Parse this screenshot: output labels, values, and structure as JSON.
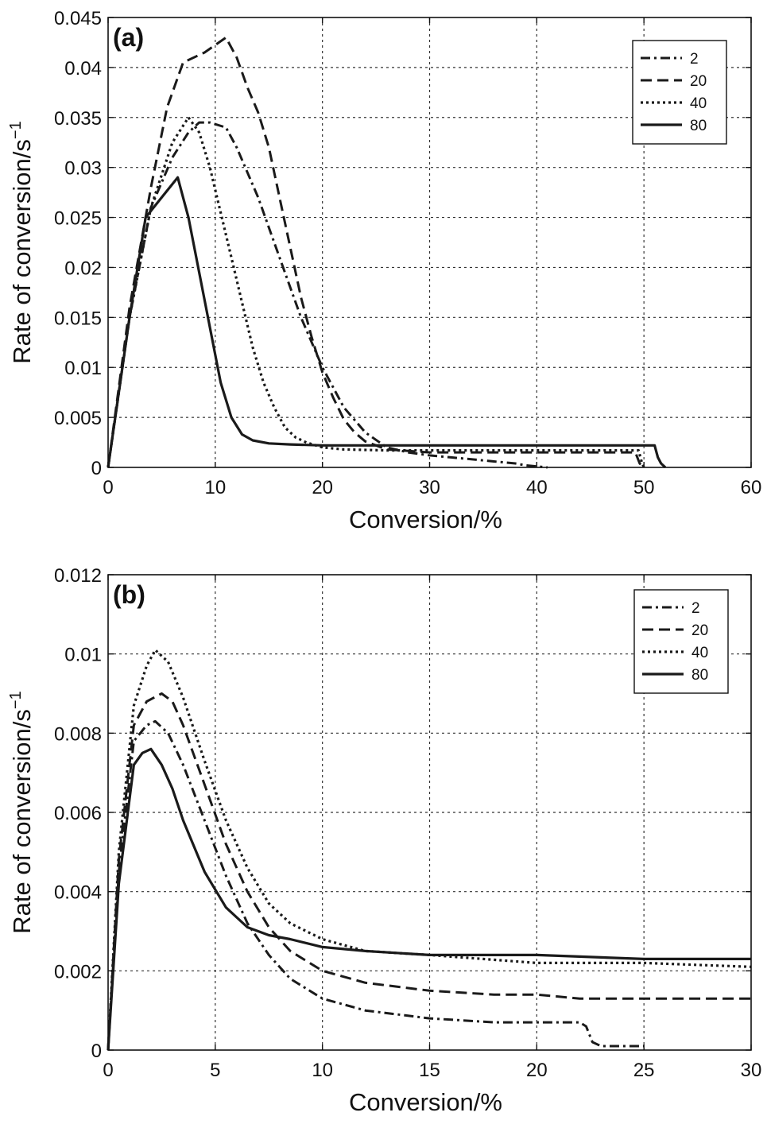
{
  "chart_data": [
    {
      "type": "line",
      "panel_label": "(a)",
      "xlabel": "Conversion/%",
      "ylabel": "Rate of conversion/s",
      "ylabel_sup": "−1",
      "xlim": [
        0,
        60
      ],
      "ylim": [
        0,
        0.045
      ],
      "xticks": [
        0,
        10,
        20,
        30,
        40,
        50,
        60
      ],
      "xtick_labels": [
        "0",
        "10",
        "20",
        "30",
        "40",
        "50",
        "60"
      ],
      "yticks": [
        0,
        0.005,
        0.01,
        0.015,
        0.02,
        0.025,
        0.03,
        0.035,
        0.04,
        0.045
      ],
      "ytick_labels": [
        "0",
        "0.005",
        "0.01",
        "0.015",
        "0.02",
        "0.025",
        "0.03",
        "0.035",
        "0.04",
        "0.045"
      ],
      "grid": true,
      "legend_position": "top-right",
      "series": [
        {
          "name": "2",
          "style": "dashdot",
          "x": [
            0,
            2,
            4,
            6,
            7.5,
            8.5,
            9.5,
            11,
            12,
            14,
            16,
            18,
            20,
            22,
            24,
            26,
            28,
            30,
            32,
            34,
            36,
            38,
            39,
            40,
            41
          ],
          "y": [
            0,
            0.015,
            0.026,
            0.031,
            0.0335,
            0.0345,
            0.0345,
            0.034,
            0.032,
            0.027,
            0.021,
            0.015,
            0.01,
            0.006,
            0.0035,
            0.002,
            0.0015,
            0.0012,
            0.001,
            0.0008,
            0.0006,
            0.0004,
            0.0002,
            0.0001,
            0
          ]
        },
        {
          "name": "20",
          "style": "dashed",
          "x": [
            0,
            2,
            4,
            5.5,
            7,
            9,
            11,
            12,
            13,
            14,
            15,
            16,
            17,
            18,
            19,
            20,
            21,
            22,
            23,
            24,
            26,
            30,
            40,
            48,
            49.2,
            49.6,
            50
          ],
          "y": [
            0,
            0.016,
            0.028,
            0.036,
            0.0405,
            0.0415,
            0.043,
            0.041,
            0.038,
            0.0355,
            0.032,
            0.027,
            0.022,
            0.017,
            0.013,
            0.0095,
            0.007,
            0.0048,
            0.0035,
            0.0026,
            0.0018,
            0.0015,
            0.0015,
            0.0015,
            0.0015,
            0.0004,
            0
          ]
        },
        {
          "name": "40",
          "style": "dotted",
          "x": [
            0,
            2,
            4,
            6,
            7.5,
            8.5,
            9.5,
            10.5,
            11.5,
            12.5,
            13.5,
            14.5,
            15.5,
            16.5,
            17.5,
            18.5,
            20,
            22,
            26,
            30,
            35,
            40,
            45,
            49.5,
            49.8,
            50
          ],
          "y": [
            0,
            0.015,
            0.026,
            0.0325,
            0.035,
            0.0335,
            0.03,
            0.0255,
            0.021,
            0.0165,
            0.012,
            0.0085,
            0.006,
            0.004,
            0.003,
            0.0025,
            0.002,
            0.0018,
            0.0017,
            0.0017,
            0.0017,
            0.0017,
            0.0017,
            0.0017,
            0.0005,
            0
          ]
        },
        {
          "name": "80",
          "style": "solid",
          "x": [
            0,
            2,
            3.5,
            5,
            6.5,
            7.5,
            8.5,
            9.5,
            10.5,
            11.5,
            12.5,
            13.5,
            15,
            17,
            20,
            25,
            30,
            35,
            40,
            45,
            50,
            51,
            51.3,
            51.6,
            52
          ],
          "y": [
            0,
            0.015,
            0.025,
            0.027,
            0.029,
            0.025,
            0.0195,
            0.014,
            0.0085,
            0.005,
            0.0033,
            0.0027,
            0.0024,
            0.0023,
            0.0022,
            0.0022,
            0.0022,
            0.0022,
            0.0022,
            0.0022,
            0.0022,
            0.0022,
            0.001,
            0.0004,
            0
          ]
        }
      ]
    },
    {
      "type": "line",
      "panel_label": "(b)",
      "xlabel": "Conversion/%",
      "ylabel": "Rate of conversion/s",
      "ylabel_sup": "−1",
      "xlim": [
        0,
        30
      ],
      "ylim": [
        0,
        0.012
      ],
      "xticks": [
        0,
        5,
        10,
        15,
        20,
        25,
        30
      ],
      "xtick_labels": [
        "0",
        "5",
        "10",
        "15",
        "20",
        "25",
        "30"
      ],
      "yticks": [
        0,
        0.002,
        0.004,
        0.006,
        0.008,
        0.01,
        0.012
      ],
      "ytick_labels": [
        "0",
        "0.002",
        "0.004",
        "0.006",
        "0.008",
        "0.01",
        "0.012"
      ],
      "grid": true,
      "legend_position": "top-right",
      "series": [
        {
          "name": "2",
          "style": "dashdot",
          "x": [
            0,
            0.5,
            1.2,
            1.8,
            2.2,
            2.8,
            3.5,
            4.5,
            5.5,
            6.5,
            7.5,
            8.5,
            10,
            12,
            15,
            18,
            20,
            22,
            22.3,
            22.6,
            23,
            24,
            25
          ],
          "y": [
            0,
            0.0045,
            0.0078,
            0.0082,
            0.0083,
            0.008,
            0.0072,
            0.0058,
            0.0044,
            0.0032,
            0.0024,
            0.0018,
            0.0013,
            0.001,
            0.0008,
            0.0007,
            0.0007,
            0.0007,
            0.0006,
            0.0002,
            0.0001,
            0.0001,
            0.0001
          ]
        },
        {
          "name": "20",
          "style": "dashed",
          "x": [
            0,
            0.5,
            1.2,
            1.8,
            2.5,
            3,
            3.5,
            4.5,
            5.5,
            6.5,
            7.5,
            8.5,
            10,
            12,
            15,
            18,
            20,
            22,
            25,
            30
          ],
          "y": [
            0,
            0.0048,
            0.0082,
            0.0088,
            0.009,
            0.0088,
            0.0082,
            0.0067,
            0.0052,
            0.004,
            0.0031,
            0.0025,
            0.002,
            0.0017,
            0.0015,
            0.0014,
            0.0014,
            0.0013,
            0.0013,
            0.0013
          ]
        },
        {
          "name": "40",
          "style": "dotted",
          "x": [
            0,
            0.5,
            1.2,
            1.8,
            2.2,
            2.8,
            3.5,
            4.5,
            5.5,
            6.5,
            7.5,
            8.5,
            10,
            12,
            15,
            20,
            25,
            30
          ],
          "y": [
            0,
            0.005,
            0.0087,
            0.0097,
            0.0101,
            0.0098,
            0.0089,
            0.0073,
            0.0058,
            0.0046,
            0.0037,
            0.0032,
            0.0028,
            0.0025,
            0.0024,
            0.0022,
            0.0022,
            0.0021
          ]
        },
        {
          "name": "80",
          "style": "solid",
          "x": [
            0,
            0.5,
            1.2,
            1.6,
            2,
            2.5,
            3,
            3.5,
            4.5,
            5.5,
            6.5,
            7.5,
            8.5,
            10,
            12,
            15,
            20,
            25,
            30
          ],
          "y": [
            0,
            0.0042,
            0.0072,
            0.0075,
            0.0076,
            0.0072,
            0.0066,
            0.0058,
            0.0045,
            0.0036,
            0.0031,
            0.0029,
            0.0028,
            0.0026,
            0.0025,
            0.0024,
            0.0024,
            0.0023,
            0.0023
          ]
        }
      ]
    }
  ]
}
